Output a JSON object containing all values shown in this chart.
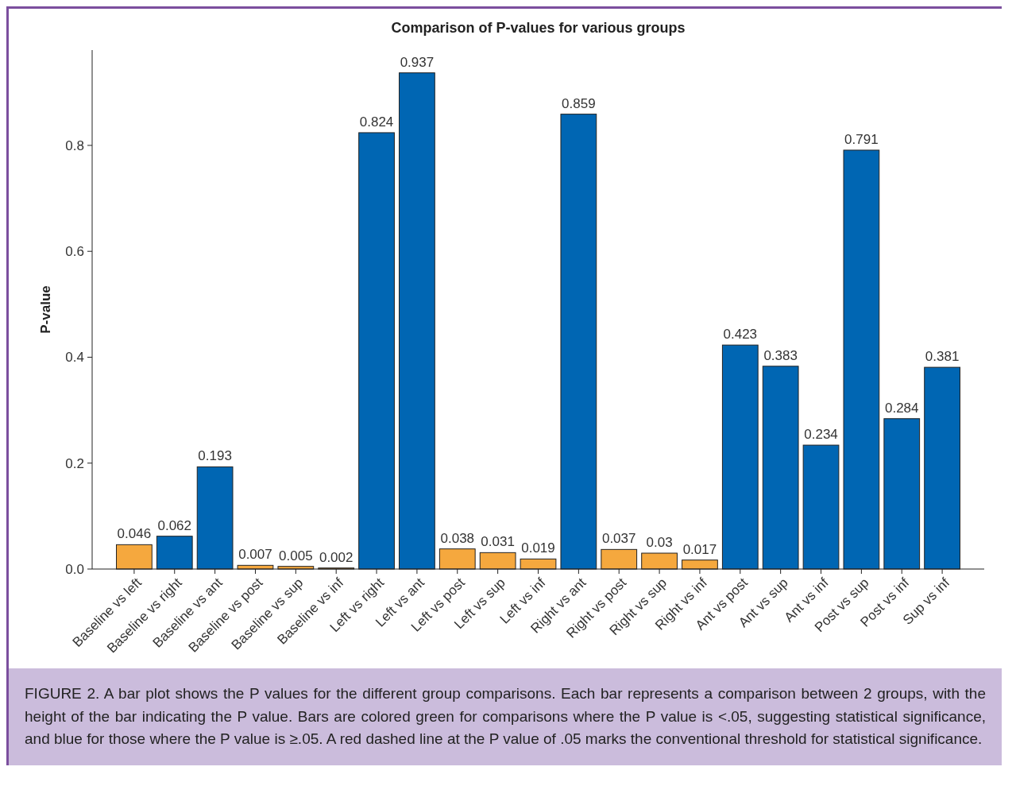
{
  "chart_data": {
    "type": "bar",
    "title": "Comparison of P-values for various groups",
    "ylabel": "P-value",
    "categories": [
      "Baseline vs left",
      "Baseline vs right",
      "Baseline vs ant",
      "Baseline vs post",
      "Baseline vs sup",
      "Baseline vs inf",
      "Left vs right",
      "Left vs ant",
      "Left vs post",
      "Left vs sup",
      "Left vs inf",
      "Right vs ant",
      "Right vs post",
      "Right vs sup",
      "Right vs inf",
      "Ant vs post",
      "Ant vs sup",
      "Ant vs inf",
      "Post vs sup",
      "Post vs inf",
      "Sup vs inf"
    ],
    "values": [
      0.046,
      0.062,
      0.193,
      0.007,
      0.005,
      0.002,
      0.824,
      0.937,
      0.038,
      0.031,
      0.019,
      0.859,
      0.037,
      0.03,
      0.017,
      0.423,
      0.383,
      0.234,
      0.791,
      0.284,
      0.381
    ],
    "colors": [
      "#f5a83e",
      "#0066b3",
      "#0066b3",
      "#f5a83e",
      "#f5a83e",
      "#f5a83e",
      "#0066b3",
      "#0066b3",
      "#f5a83e",
      "#f5a83e",
      "#f5a83e",
      "#0066b3",
      "#f5a83e",
      "#f5a83e",
      "#f5a83e",
      "#0066b3",
      "#0066b3",
      "#0066b3",
      "#0066b3",
      "#0066b3",
      "#0066b3"
    ],
    "ylim": [
      0,
      0.98
    ],
    "yticks": [
      {
        "value": 0,
        "label": "0.0"
      },
      0.2,
      0.4,
      0.6,
      0.8
    ],
    "data_labels": true,
    "annotations": [
      "FIGURE 2. A bar plot shows the P values for the different group comparisons. Each bar represents a comparison between 2 groups, with the height of the bar indicating the P value. Bars are colored green for comparisons where the P value is <.05, suggesting statistical significance, and blue for those where the P value is ≥.05. A red dashed line at the P value of .05 marks the conventional threshold for statistical significance."
    ]
  }
}
